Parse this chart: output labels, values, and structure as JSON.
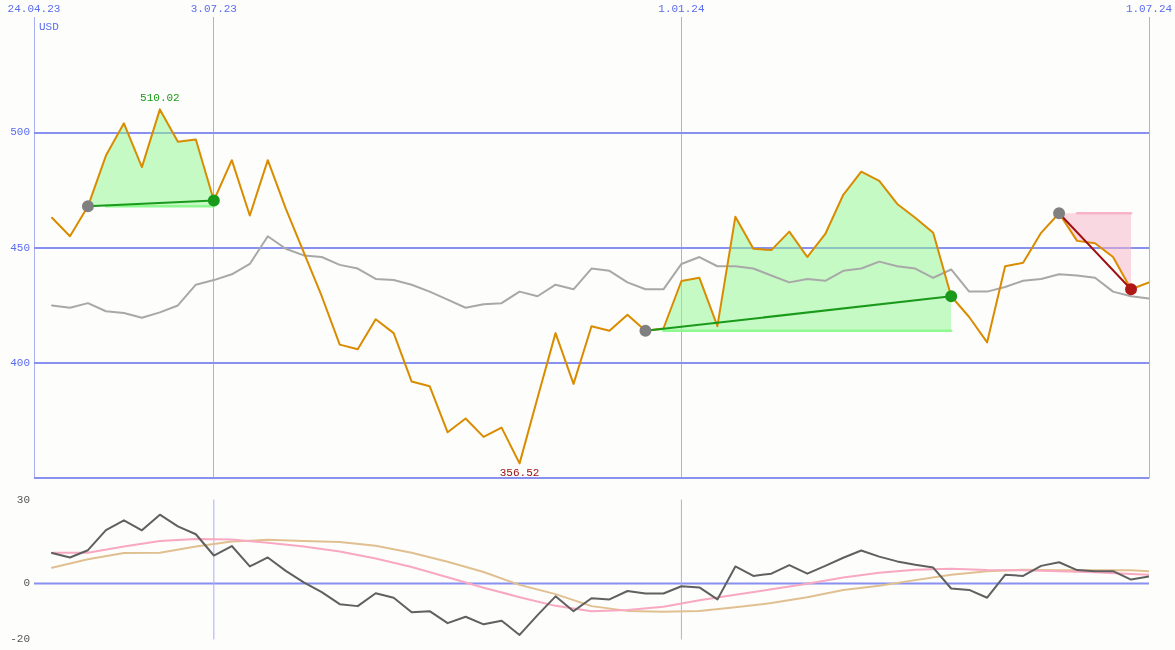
{
  "chart_data": [
    {
      "type": "line",
      "ylabel": "USD",
      "x": [
        "2023-05-01",
        "2023-05-08",
        "2023-05-15",
        "2023-05-22",
        "2023-05-29",
        "2023-06-05",
        "2023-06-12",
        "2023-06-19",
        "2023-06-26",
        "2023-07-03",
        "2023-07-10",
        "2023-07-17",
        "2023-07-24",
        "2023-07-31",
        "2023-08-07",
        "2023-08-14",
        "2023-08-21",
        "2023-08-28",
        "2023-09-04",
        "2023-09-11",
        "2023-09-18",
        "2023-09-25",
        "2023-10-02",
        "2023-10-09",
        "2023-10-16",
        "2023-10-23",
        "2023-10-30",
        "2023-11-06",
        "2023-11-13",
        "2023-11-20",
        "2023-11-27",
        "2023-12-04",
        "2023-12-11",
        "2023-12-18",
        "2023-12-25",
        "2024-01-01",
        "2024-01-08",
        "2024-01-15",
        "2024-01-22",
        "2024-01-29",
        "2024-02-05",
        "2024-02-12",
        "2024-02-19",
        "2024-02-26",
        "2024-03-04",
        "2024-03-11",
        "2024-03-18",
        "2024-03-25",
        "2024-04-01",
        "2024-04-08",
        "2024-04-15",
        "2024-04-22",
        "2024-04-29",
        "2024-05-06",
        "2024-05-13",
        "2024-05-20",
        "2024-05-27",
        "2024-06-03",
        "2024-06-10",
        "2024-06-17",
        "2024-06-24",
        "2024-07-01"
      ],
      "series": [
        {
          "color": "#90f890",
          "x": [
            "2023-05-15",
            "2023-05-22",
            "2023-05-29",
            "2023-06-05",
            "2023-06-12",
            "2023-06-19",
            "2023-06-26",
            "2023-07-03"
          ],
          "values": [
            null,
            468,
            468,
            468,
            468,
            468,
            468,
            468
          ],
          "lower": [
            468,
            468,
            468,
            468,
            468,
            468,
            468,
            468
          ],
          "upper": [
            468,
            490,
            504,
            485,
            510.02,
            496,
            497,
            470.5
          ]
        },
        {
          "color": "#90f890",
          "x": [
            "2023-12-18",
            "2023-12-25",
            "2024-01-01",
            "2024-01-08",
            "2024-01-15",
            "2024-01-22",
            "2024-01-29",
            "2024-02-05",
            "2024-02-12",
            "2024-02-19",
            "2024-02-26",
            "2024-03-04",
            "2024-03-11",
            "2024-03-18",
            "2024-03-25",
            "2024-04-01",
            "2024-04-08",
            "2024-04-15"
          ],
          "values": [
            null,
            414,
            414,
            414,
            414,
            414,
            414,
            414,
            414,
            414,
            414,
            414,
            414,
            414,
            414,
            414,
            414,
            414
          ],
          "lower": [
            414,
            414,
            414,
            414,
            414,
            414,
            414,
            414,
            414,
            414,
            414,
            414,
            414,
            414,
            414,
            414,
            414,
            414
          ],
          "upper": [
            414,
            415,
            435.6,
            437,
            416,
            463.5,
            449.6,
            449,
            457,
            446,
            456,
            473,
            483,
            479,
            469,
            463,
            456.5,
            429
          ]
        },
        {
          "color": "#f8b4c8",
          "x": [
            "2024-05-27",
            "2024-06-03",
            "2024-06-10",
            "2024-06-17",
            "2024-06-24"
          ],
          "values": [
            null,
            465,
            465,
            465,
            465
          ],
          "lower": [
            465,
            453,
            452,
            446,
            432
          ],
          "upper": [
            465,
            465,
            465,
            465,
            465
          ]
        },
        {
          "color": "#a8a8a8",
          "values": [
            425,
            424,
            426,
            422.5,
            421.7,
            419.7,
            422,
            425,
            434,
            436,
            438.5,
            443,
            455,
            449.6,
            446.7,
            446,
            442.6,
            441,
            436.5,
            436,
            434,
            431,
            427.5,
            424,
            425.5,
            426,
            431,
            429,
            434,
            432,
            441,
            440,
            435,
            432,
            432,
            443,
            446,
            442,
            442,
            441,
            438,
            435,
            436.5,
            435.7,
            440,
            441,
            444,
            442,
            441,
            437,
            440.6,
            431,
            431,
            433,
            435.7,
            436.5,
            438.5,
            438,
            437,
            431,
            429,
            428
          ]
        },
        {
          "color": "#d98c00",
          "values": [
            463,
            455,
            468,
            490,
            504,
            485,
            510.02,
            496,
            497,
            470.5,
            488,
            464,
            488,
            467,
            448,
            429,
            408,
            406,
            419,
            413,
            392,
            390,
            370,
            376,
            368,
            372,
            356.52,
            385,
            413,
            391,
            416,
            414,
            421,
            414,
            415,
            435.6,
            437,
            416,
            463.5,
            449.6,
            449,
            457,
            446,
            456,
            473,
            483,
            479,
            469,
            463,
            456.5,
            429,
            420,
            409,
            442,
            443.5,
            456.5,
            465,
            453,
            452,
            446,
            432,
            435
          ]
        },
        {
          "color": "#1a9a1a",
          "marker": "circle",
          "colors": [
            "#808080",
            "#1a9a1a"
          ],
          "x": [
            "2023-05-15",
            "2023-07-03"
          ],
          "values": [
            468,
            470.5
          ]
        },
        {
          "color": "#1a9a1a",
          "marker": "circle",
          "colors": [
            "#808080",
            "#1a9a1a"
          ],
          "x": [
            "2023-12-18",
            "2024-04-15"
          ],
          "values": [
            414,
            429
          ]
        },
        {
          "color": "#a01010",
          "marker": "circle",
          "colors": [
            "#808080",
            "#b01818"
          ],
          "x": [
            "2024-05-27",
            "2024-06-24"
          ],
          "values": [
            465,
            432
          ]
        }
      ],
      "xlim": [
        "2023-04-24",
        "2024-07-01"
      ],
      "xticks": [
        {
          "value": "2023-04-24",
          "label": "24.04.23"
        },
        {
          "value": "2023-07-03",
          "label": "3.07.23"
        },
        {
          "value": "2024-01-01",
          "label": "1.01.24"
        },
        {
          "value": "2024-07-01",
          "label": "1.07.24"
        }
      ],
      "ylim": [
        350,
        550
      ],
      "yticks": [
        {
          "value": 350,
          "label": null
        },
        400,
        450,
        500
      ],
      "annotations": [
        {
          "text": "510.02",
          "x": "2023-06-12",
          "y": 510.02
        },
        {
          "text": "356.52",
          "x": "2023-10-30",
          "y": 356.52
        }
      ],
      "grid": true,
      "marker": "none",
      "line_style": "solid"
    },
    {
      "type": "line",
      "x": [
        "2023-05-01",
        "2023-05-08",
        "2023-05-15",
        "2023-05-22",
        "2023-05-29",
        "2023-06-05",
        "2023-06-12",
        "2023-06-19",
        "2023-06-26",
        "2023-07-03",
        "2023-07-10",
        "2023-07-17",
        "2023-07-24",
        "2023-07-31",
        "2023-08-07",
        "2023-08-14",
        "2023-08-21",
        "2023-08-28",
        "2023-09-04",
        "2023-09-11",
        "2023-09-18",
        "2023-09-25",
        "2023-10-02",
        "2023-10-09",
        "2023-10-16",
        "2023-10-23",
        "2023-10-30",
        "2023-11-06",
        "2023-11-13",
        "2023-11-20",
        "2023-11-27",
        "2023-12-04",
        "2023-12-11",
        "2023-12-18",
        "2023-12-25",
        "2024-01-01",
        "2024-01-08",
        "2024-01-15",
        "2024-01-22",
        "2024-01-29",
        "2024-02-05",
        "2024-02-12",
        "2024-02-19",
        "2024-02-26",
        "2024-03-04",
        "2024-03-11",
        "2024-03-18",
        "2024-03-25",
        "2024-04-01",
        "2024-04-08",
        "2024-04-15",
        "2024-04-22",
        "2024-04-29",
        "2024-05-06",
        "2024-05-13",
        "2024-05-20",
        "2024-05-27",
        "2024-06-03",
        "2024-06-10",
        "2024-06-17",
        "2024-06-24",
        "2024-07-01"
      ],
      "series": [
        {
          "color": "#e0c090",
          "x": [
            "2023-05-01",
            "2023-05-15",
            "2023-05-29",
            "2023-06-12",
            "2023-06-26",
            "2023-07-10",
            "2023-07-24",
            "2023-08-07",
            "2023-08-21",
            "2023-09-04",
            "2023-09-18",
            "2023-10-02",
            "2023-10-16",
            "2023-10-30",
            "2023-11-13",
            "2023-11-27",
            "2023-12-11",
            "2023-12-25",
            "2024-01-08",
            "2024-01-22",
            "2024-02-05",
            "2024-02-19",
            "2024-03-04",
            "2024-03-18",
            "2024-04-01",
            "2024-04-15",
            "2024-04-29",
            "2024-05-13",
            "2024-05-27",
            "2024-06-10",
            "2024-06-24",
            "2024-07-01"
          ],
          "values": [
            5.6,
            8.7,
            10.9,
            11,
            13.2,
            15,
            15.6,
            15.2,
            14.8,
            13.5,
            11,
            7.8,
            4.1,
            -0.5,
            -3.8,
            -8.1,
            -9.8,
            -10.1,
            -9.8,
            -8.5,
            -7,
            -4.9,
            -2.3,
            -0.8,
            1.2,
            3.1,
            4.4,
            4.9,
            4.7,
            4.7,
            4.7,
            4.4
          ]
        },
        {
          "color": "#f8a8c0",
          "x": [
            "2023-05-01",
            "2023-05-15",
            "2023-05-29",
            "2023-06-12",
            "2023-06-26",
            "2023-07-10",
            "2023-07-24",
            "2023-08-07",
            "2023-08-21",
            "2023-09-04",
            "2023-09-18",
            "2023-10-02",
            "2023-10-16",
            "2023-10-30",
            "2023-11-13",
            "2023-11-27",
            "2023-12-11",
            "2023-12-25",
            "2024-01-08",
            "2024-01-22",
            "2024-02-05",
            "2024-02-19",
            "2024-03-04",
            "2024-03-18",
            "2024-04-01",
            "2024-04-15",
            "2024-04-29",
            "2024-05-13",
            "2024-05-27",
            "2024-06-10",
            "2024-06-24",
            "2024-07-01"
          ],
          "values": [
            11,
            11,
            13.2,
            15.2,
            15.9,
            15.7,
            14.6,
            13.2,
            11.4,
            8.9,
            5.9,
            2.2,
            -1.5,
            -4.9,
            -8,
            -9.9,
            -9.5,
            -8.3,
            -6,
            -4,
            -2.1,
            -0.1,
            2.1,
            3.8,
            4.9,
            5.3,
            4.8,
            4.7,
            4.4,
            4,
            3.4,
            3.1
          ]
        },
        {
          "color": "#606060",
          "values": [
            10.9,
            9.3,
            11.9,
            19.1,
            22.6,
            19,
            24.6,
            20.4,
            17.6,
            10,
            13.4,
            6.1,
            9.3,
            4.5,
            0.4,
            -3.1,
            -7.4,
            -8.1,
            -3.5,
            -5.1,
            -10.3,
            -9.9,
            -14.2,
            -11.9,
            -14.6,
            -13.3,
            -18.4,
            -11.3,
            -4.6,
            -9.9,
            -5.3,
            -5.7,
            -2.7,
            -3.6,
            -3.6,
            -1,
            -1.4,
            -5.7,
            6.1,
            2.7,
            3.5,
            6.6,
            3.5,
            6.3,
            9.2,
            11.8,
            9.6,
            7.9,
            6.7,
            5.7,
            -1.8,
            -2.3,
            -5.1,
            3.1,
            2.7,
            6.3,
            7.6,
            4.8,
            4.4,
            4.4,
            1.4,
            2.5
          ]
        }
      ],
      "xlim": [
        "2023-04-24",
        "2024-07-01"
      ],
      "ylim": [
        -20,
        30
      ],
      "yticks": [
        -20,
        0,
        30
      ],
      "ref_lines": [
        {
          "axis": "y",
          "value": 0,
          "color": "#8890f0"
        },
        {
          "axis": "x",
          "value": "2023-07-03",
          "color": "#a8b0f0"
        },
        {
          "axis": "x",
          "value": "2024-01-01",
          "color": "#a8b0f0"
        }
      ],
      "tick_labels": "y",
      "marker": "none",
      "line_style": "solid"
    }
  ]
}
